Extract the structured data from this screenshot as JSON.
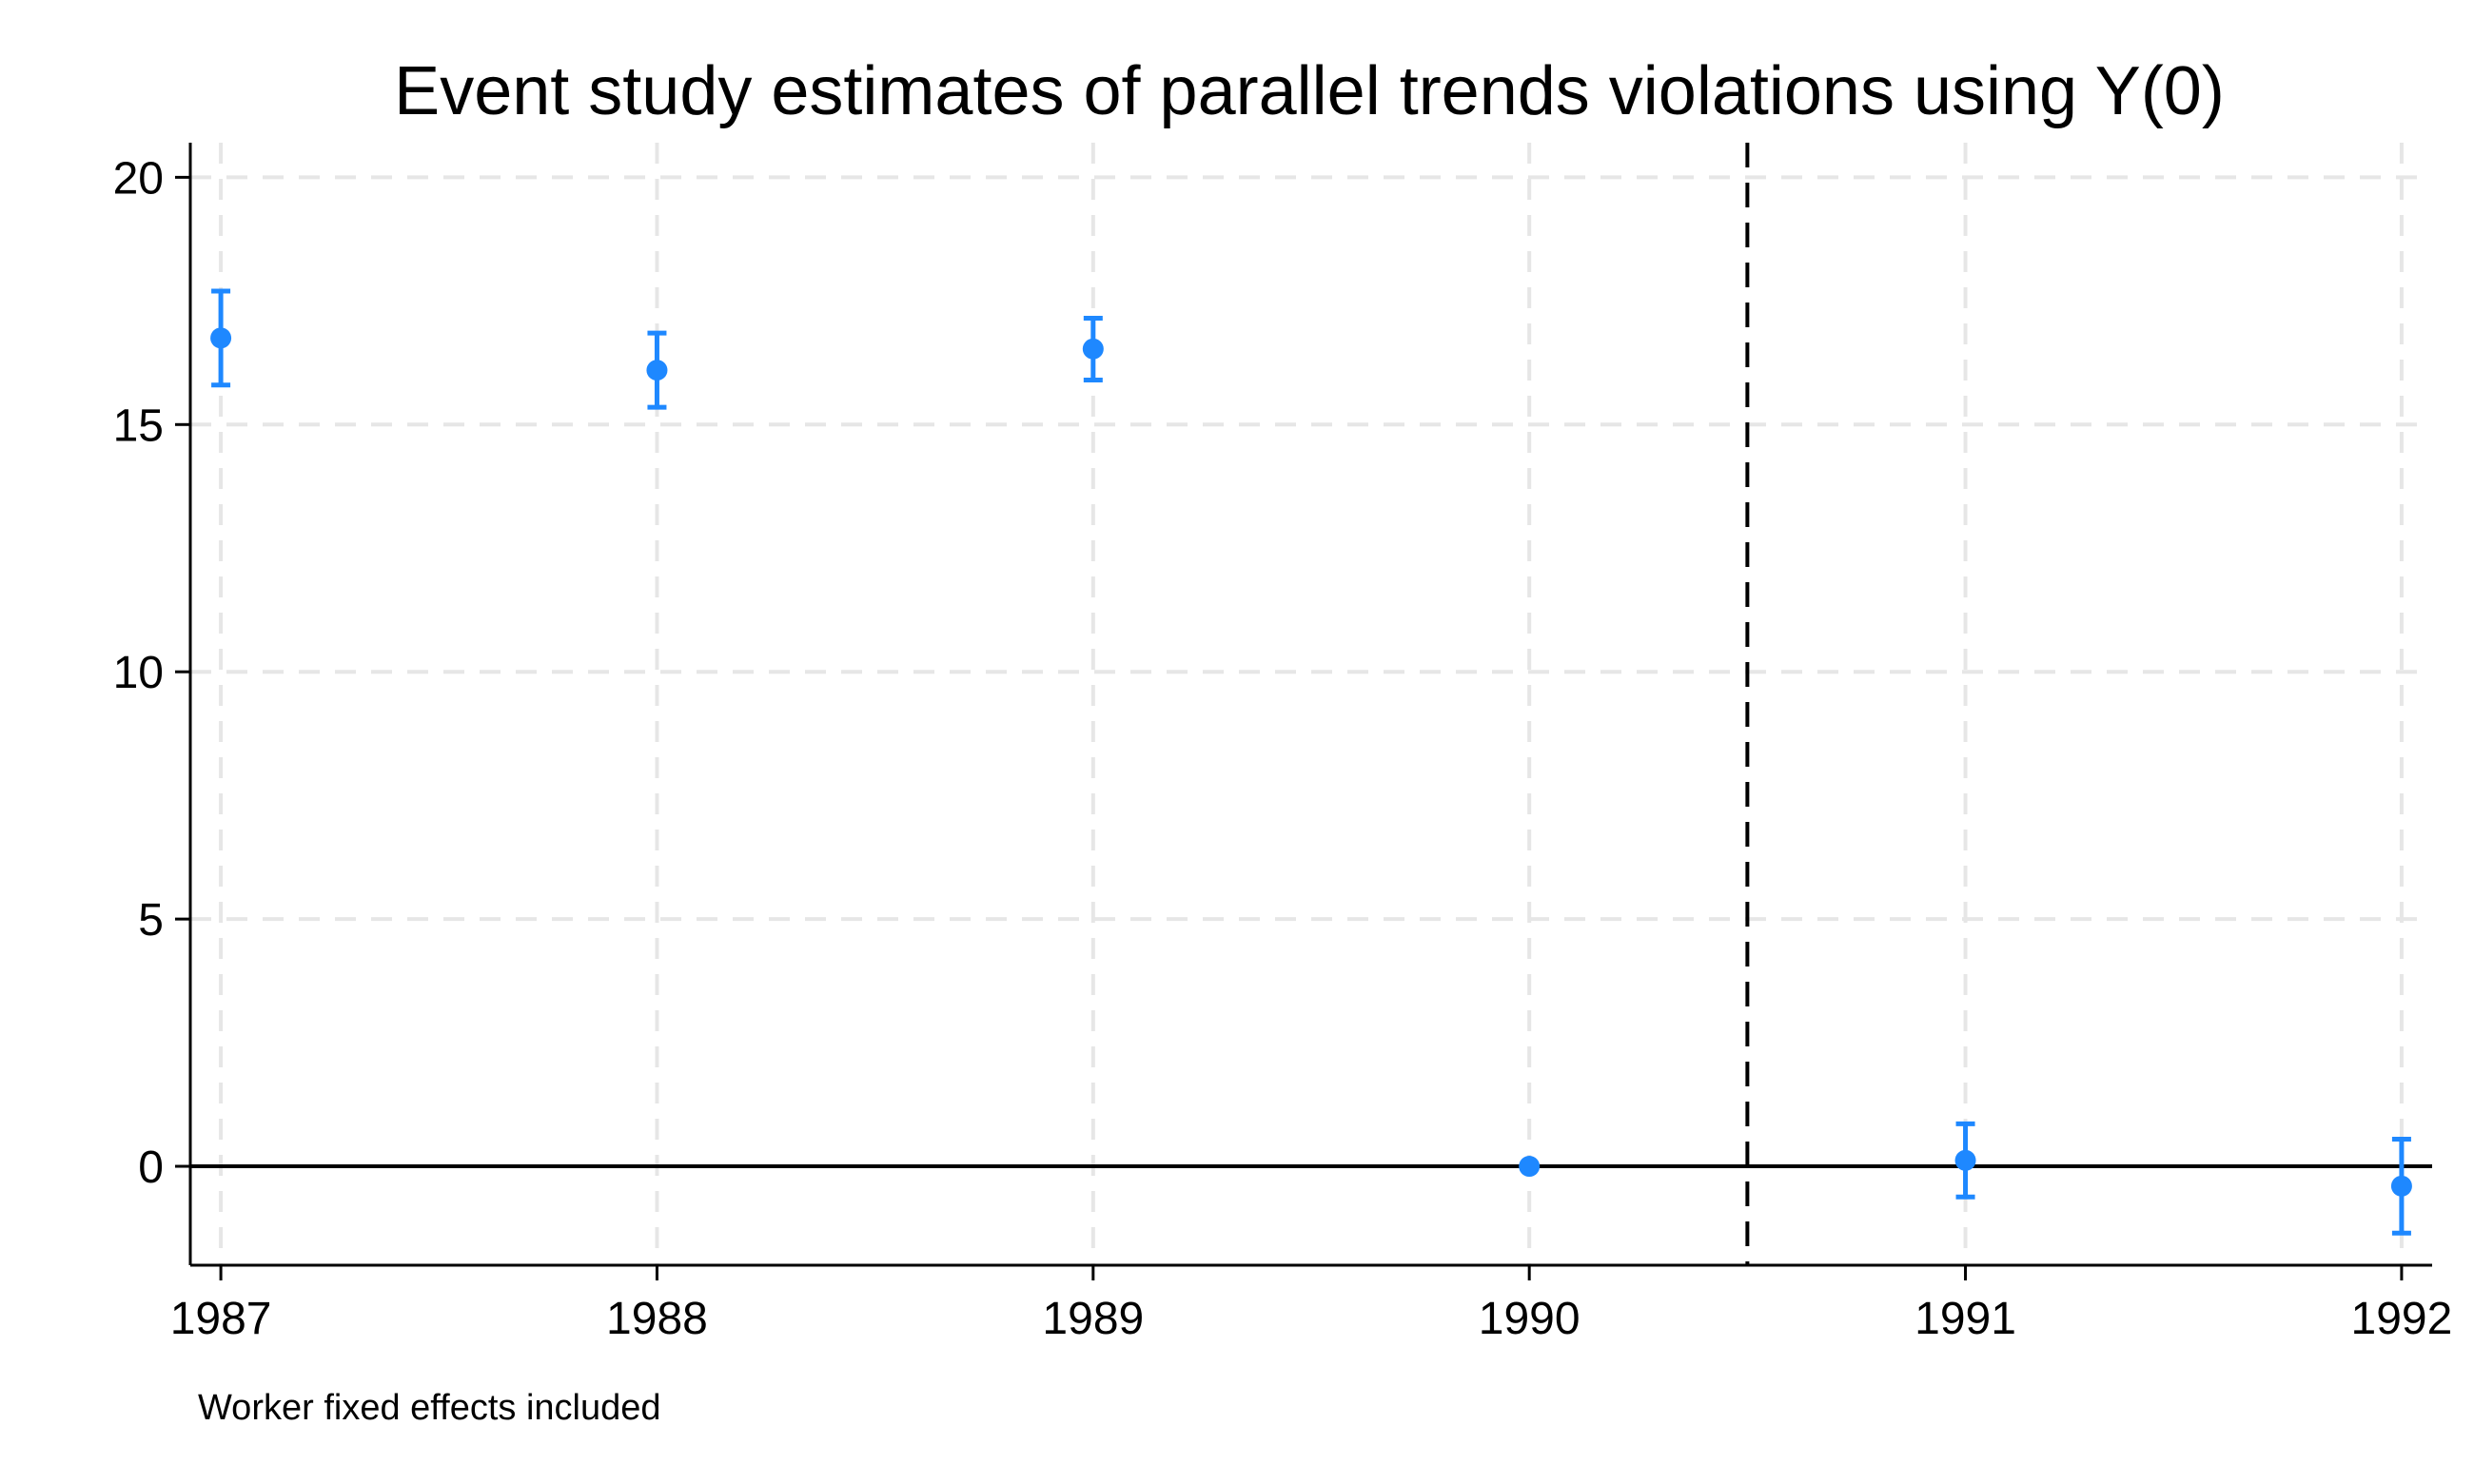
{
  "chart_data": {
    "type": "scatter",
    "title": "Event study estimates of parallel trends violations using Y(0)",
    "xlabel": "",
    "ylabel": "",
    "note": "Worker fixed effects included",
    "x": [
      1987,
      1988,
      1989,
      1990,
      1991,
      1992
    ],
    "series": [
      {
        "values": [
          16.75,
          16.1,
          16.53,
          0.0,
          0.12,
          -0.4
        ],
        "ci_low": [
          15.8,
          15.35,
          15.9,
          0.0,
          -0.62,
          -1.35
        ],
        "ci_high": [
          17.7,
          16.85,
          17.15,
          0.0,
          0.86,
          0.55
        ]
      }
    ],
    "xticks": [
      "1987",
      "1988",
      "1989",
      "1990",
      "1991",
      "1992"
    ],
    "yticks": [
      "0",
      "5",
      "10",
      "15",
      "20"
    ],
    "ytick_values": [
      0,
      5,
      10,
      15,
      20
    ],
    "xlim": [
      1986.93,
      1992.07
    ],
    "ylim": [
      -2.0,
      20.7
    ],
    "event_line_x": 1990.5,
    "reference_line_y": 0,
    "grid": true,
    "legend": "none",
    "colors": {
      "marker": "#1e88ff",
      "grid": "#e6e6e6",
      "axis": "#000000"
    }
  }
}
